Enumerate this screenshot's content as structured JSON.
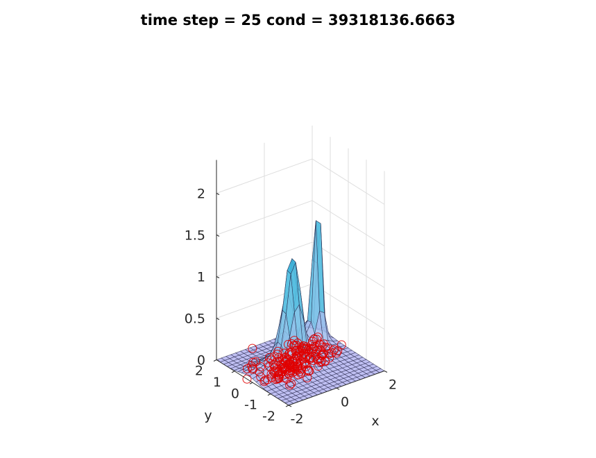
{
  "chart_data": {
    "type": "surface3d",
    "title": "time step = 25 cond = 39318136.6663",
    "xlabel": "x",
    "ylabel": "y",
    "zlabel": "",
    "xlim": [
      -2,
      2
    ],
    "ylim": [
      -2,
      2
    ],
    "zlim": [
      0,
      2.4
    ],
    "xticks": [
      {
        "value": -2,
        "label": "-2"
      },
      {
        "value": 0,
        "label": "0"
      },
      {
        "value": 2,
        "label": "2"
      }
    ],
    "yticks": [
      {
        "value": -2,
        "label": "-2"
      },
      {
        "value": -1,
        "label": "-1"
      },
      {
        "value": 0,
        "label": "0"
      },
      {
        "value": 1,
        "label": "1"
      },
      {
        "value": 2,
        "label": "2"
      }
    ],
    "zticks": [
      {
        "value": 0,
        "label": "0"
      },
      {
        "value": 0.5,
        "label": "0.5"
      },
      {
        "value": 1,
        "label": "1"
      },
      {
        "value": 1.5,
        "label": "1.5"
      },
      {
        "value": 2,
        "label": "2"
      }
    ],
    "grid": true,
    "surface": {
      "grid_n": 20,
      "face_color": "#b4b4f0",
      "face_alpha": 0.85,
      "components": [
        {
          "x": -0.25,
          "y": 0.1,
          "amp": 1.2,
          "sx": 0.28,
          "sy": 0.28
        },
        {
          "x": -0.55,
          "y": 0.2,
          "amp": 0.18,
          "sx": 0.9,
          "sy": 0.45
        },
        {
          "x": 1.5,
          "y": 1.05,
          "amp": 1.95,
          "sx": 0.12,
          "sy": 0.14
        },
        {
          "x": 1.25,
          "y": 1.2,
          "amp": 0.2,
          "sx": 0.35,
          "sy": 0.4
        }
      ]
    },
    "scatter": {
      "marker": "circle",
      "color": "#e00000",
      "count": 200,
      "z": 0,
      "clusters": [
        {
          "x": -0.45,
          "y": 0.2,
          "sx": 0.55,
          "sy": 0.45,
          "weight": 0.65
        },
        {
          "x": 0.9,
          "y": 0.55,
          "sx": 0.45,
          "sy": 0.45,
          "weight": 0.35
        }
      ]
    }
  }
}
